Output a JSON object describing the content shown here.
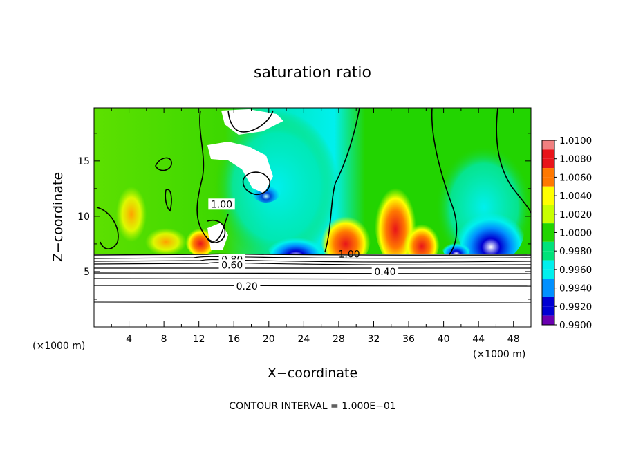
{
  "chart_data": {
    "type": "heatmap",
    "title": "saturation ratio",
    "xlabel": "X−coordinate",
    "ylabel": "Z−coordinate",
    "x_unit_left": "(×1000 m)",
    "x_unit_right": "(×1000 m)",
    "xlim": [
      0,
      50
    ],
    "ylim": [
      0,
      19.8
    ],
    "x_ticks": [
      4,
      8,
      12,
      16,
      20,
      24,
      28,
      32,
      36,
      40,
      44,
      48
    ],
    "y_ticks": [
      5,
      10,
      15
    ],
    "colorbar": {
      "levels": [
        "1.0100",
        "1.0080",
        "1.0060",
        "1.0040",
        "1.0020",
        "1.0000",
        "0.9980",
        "0.9960",
        "0.9940",
        "0.9920",
        "0.9900"
      ],
      "colors": [
        "#f08080",
        "#e8141a",
        "#ff7800",
        "#ffff00",
        "#c8ff00",
        "#22d400",
        "#00e27a",
        "#00f0ee",
        "#0090ff",
        "#0000d2",
        "#6a00b0"
      ]
    },
    "contour_labels": [
      {
        "text": "1.00",
        "x": 14.6,
        "y": 11.1
      },
      {
        "text": "1.00",
        "x": 29.2,
        "y": 6.6
      },
      {
        "text": "0.80",
        "x": 15.8,
        "y": 6.1
      },
      {
        "text": "0.60",
        "x": 15.8,
        "y": 5.6
      },
      {
        "text": "0.40",
        "x": 33.3,
        "y": 5.0
      },
      {
        "text": "0.20",
        "x": 17.5,
        "y": 3.7
      }
    ],
    "contour_interval": "CONTOUR INTERVAL = 1.000E−01"
  }
}
